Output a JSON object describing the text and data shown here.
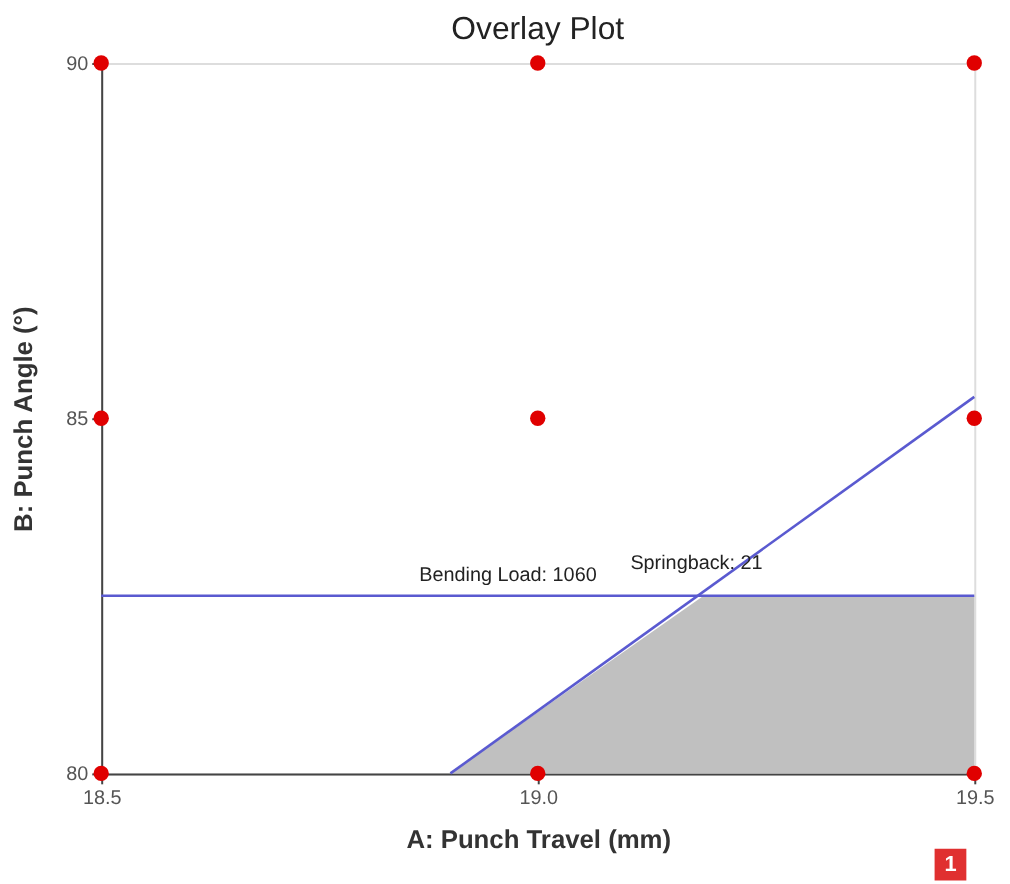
{
  "chart_data": {
    "type": "line",
    "title": "Overlay Plot",
    "xlabel": "A: Punch Travel (mm)",
    "ylabel": "B: Punch Angle (°)",
    "xlim": [
      18.5,
      19.5
    ],
    "ylim": [
      80,
      90
    ],
    "xticks": [
      18.5,
      {
        "value": 19,
        "label": "19.0"
      },
      19.5
    ],
    "yticks": [
      80,
      85,
      90
    ],
    "grid": false,
    "series": [
      {
        "type": "area",
        "color": "#c0c0c0",
        "x": [
          18.9,
          19.19,
          19.5
        ],
        "values": [
          80,
          82.5,
          82.5
        ]
      },
      {
        "color": "#5a5ad0",
        "x": [
          18.5,
          19.5
        ],
        "values": [
          82.5,
          82.5
        ]
      },
      {
        "color": "#5a5ad0",
        "x": [
          18.9,
          19.5
        ],
        "values": [
          80,
          85.3
        ]
      },
      {
        "type": "scatter",
        "color": "#e00000",
        "marker": "circle",
        "x": [
          18.5,
          18.5,
          18.5,
          19,
          19,
          19,
          19.5,
          19.5,
          19.5
        ],
        "values": [
          80,
          85,
          90,
          80,
          85,
          90,
          80,
          85,
          90
        ]
      }
    ],
    "annotations": [
      "Bending Load: 1060",
      "Springback: 21",
      "1"
    ]
  }
}
